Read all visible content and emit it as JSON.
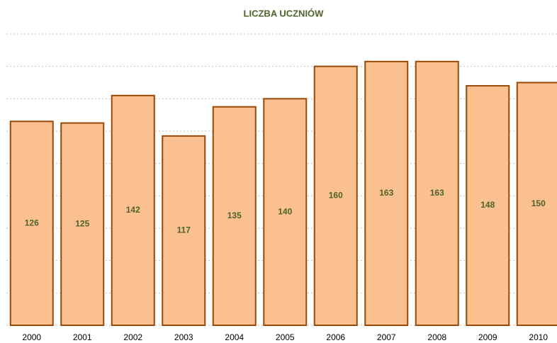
{
  "chart_data": {
    "type": "bar",
    "title": "LICZBA UCZNIÓW",
    "categories": [
      "2000",
      "2001",
      "2002",
      "2003",
      "2004",
      "2005",
      "2006",
      "2007",
      "2008",
      "2009",
      "2010"
    ],
    "values": [
      126,
      125,
      142,
      117,
      135,
      140,
      160,
      163,
      163,
      148,
      150
    ],
    "color": "#fac090",
    "edge_color": "#984807",
    "label_color": "#4f6228",
    "ylim": [
      0,
      180
    ],
    "yticks": [
      0,
      20,
      40,
      60,
      80,
      100,
      120,
      140,
      160,
      180
    ],
    "grid": true
  }
}
